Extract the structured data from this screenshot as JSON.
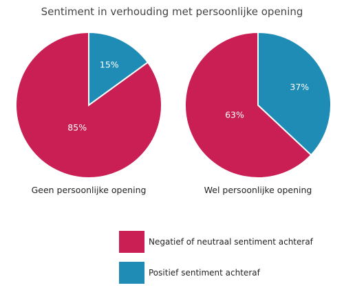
{
  "chart_data": {
    "type": "pie",
    "title": "Sentiment in verhouding met persoonlijke opening",
    "categories": [
      "Negatief of neutraal sentiment achteraf",
      "Positief sentiment achteraf"
    ],
    "colors": {
      "negatief": "#c91f55",
      "positief": "#1f8cb6"
    },
    "pies": [
      {
        "name": "Geen persoonlijke opening",
        "values": [
          85,
          15
        ],
        "labels": [
          "85%",
          "15%"
        ]
      },
      {
        "name": "Wel persoonlijke opening",
        "values": [
          63,
          37
        ],
        "labels": [
          "63%",
          "37%"
        ]
      }
    ],
    "legend": {
      "placement": "bottom",
      "entries": [
        {
          "label": "Negatief of neutraal sentiment achteraf",
          "color": "#c91f55"
        },
        {
          "label": "Positief sentiment achteraf",
          "color": "#1f8cb6"
        }
      ]
    }
  }
}
